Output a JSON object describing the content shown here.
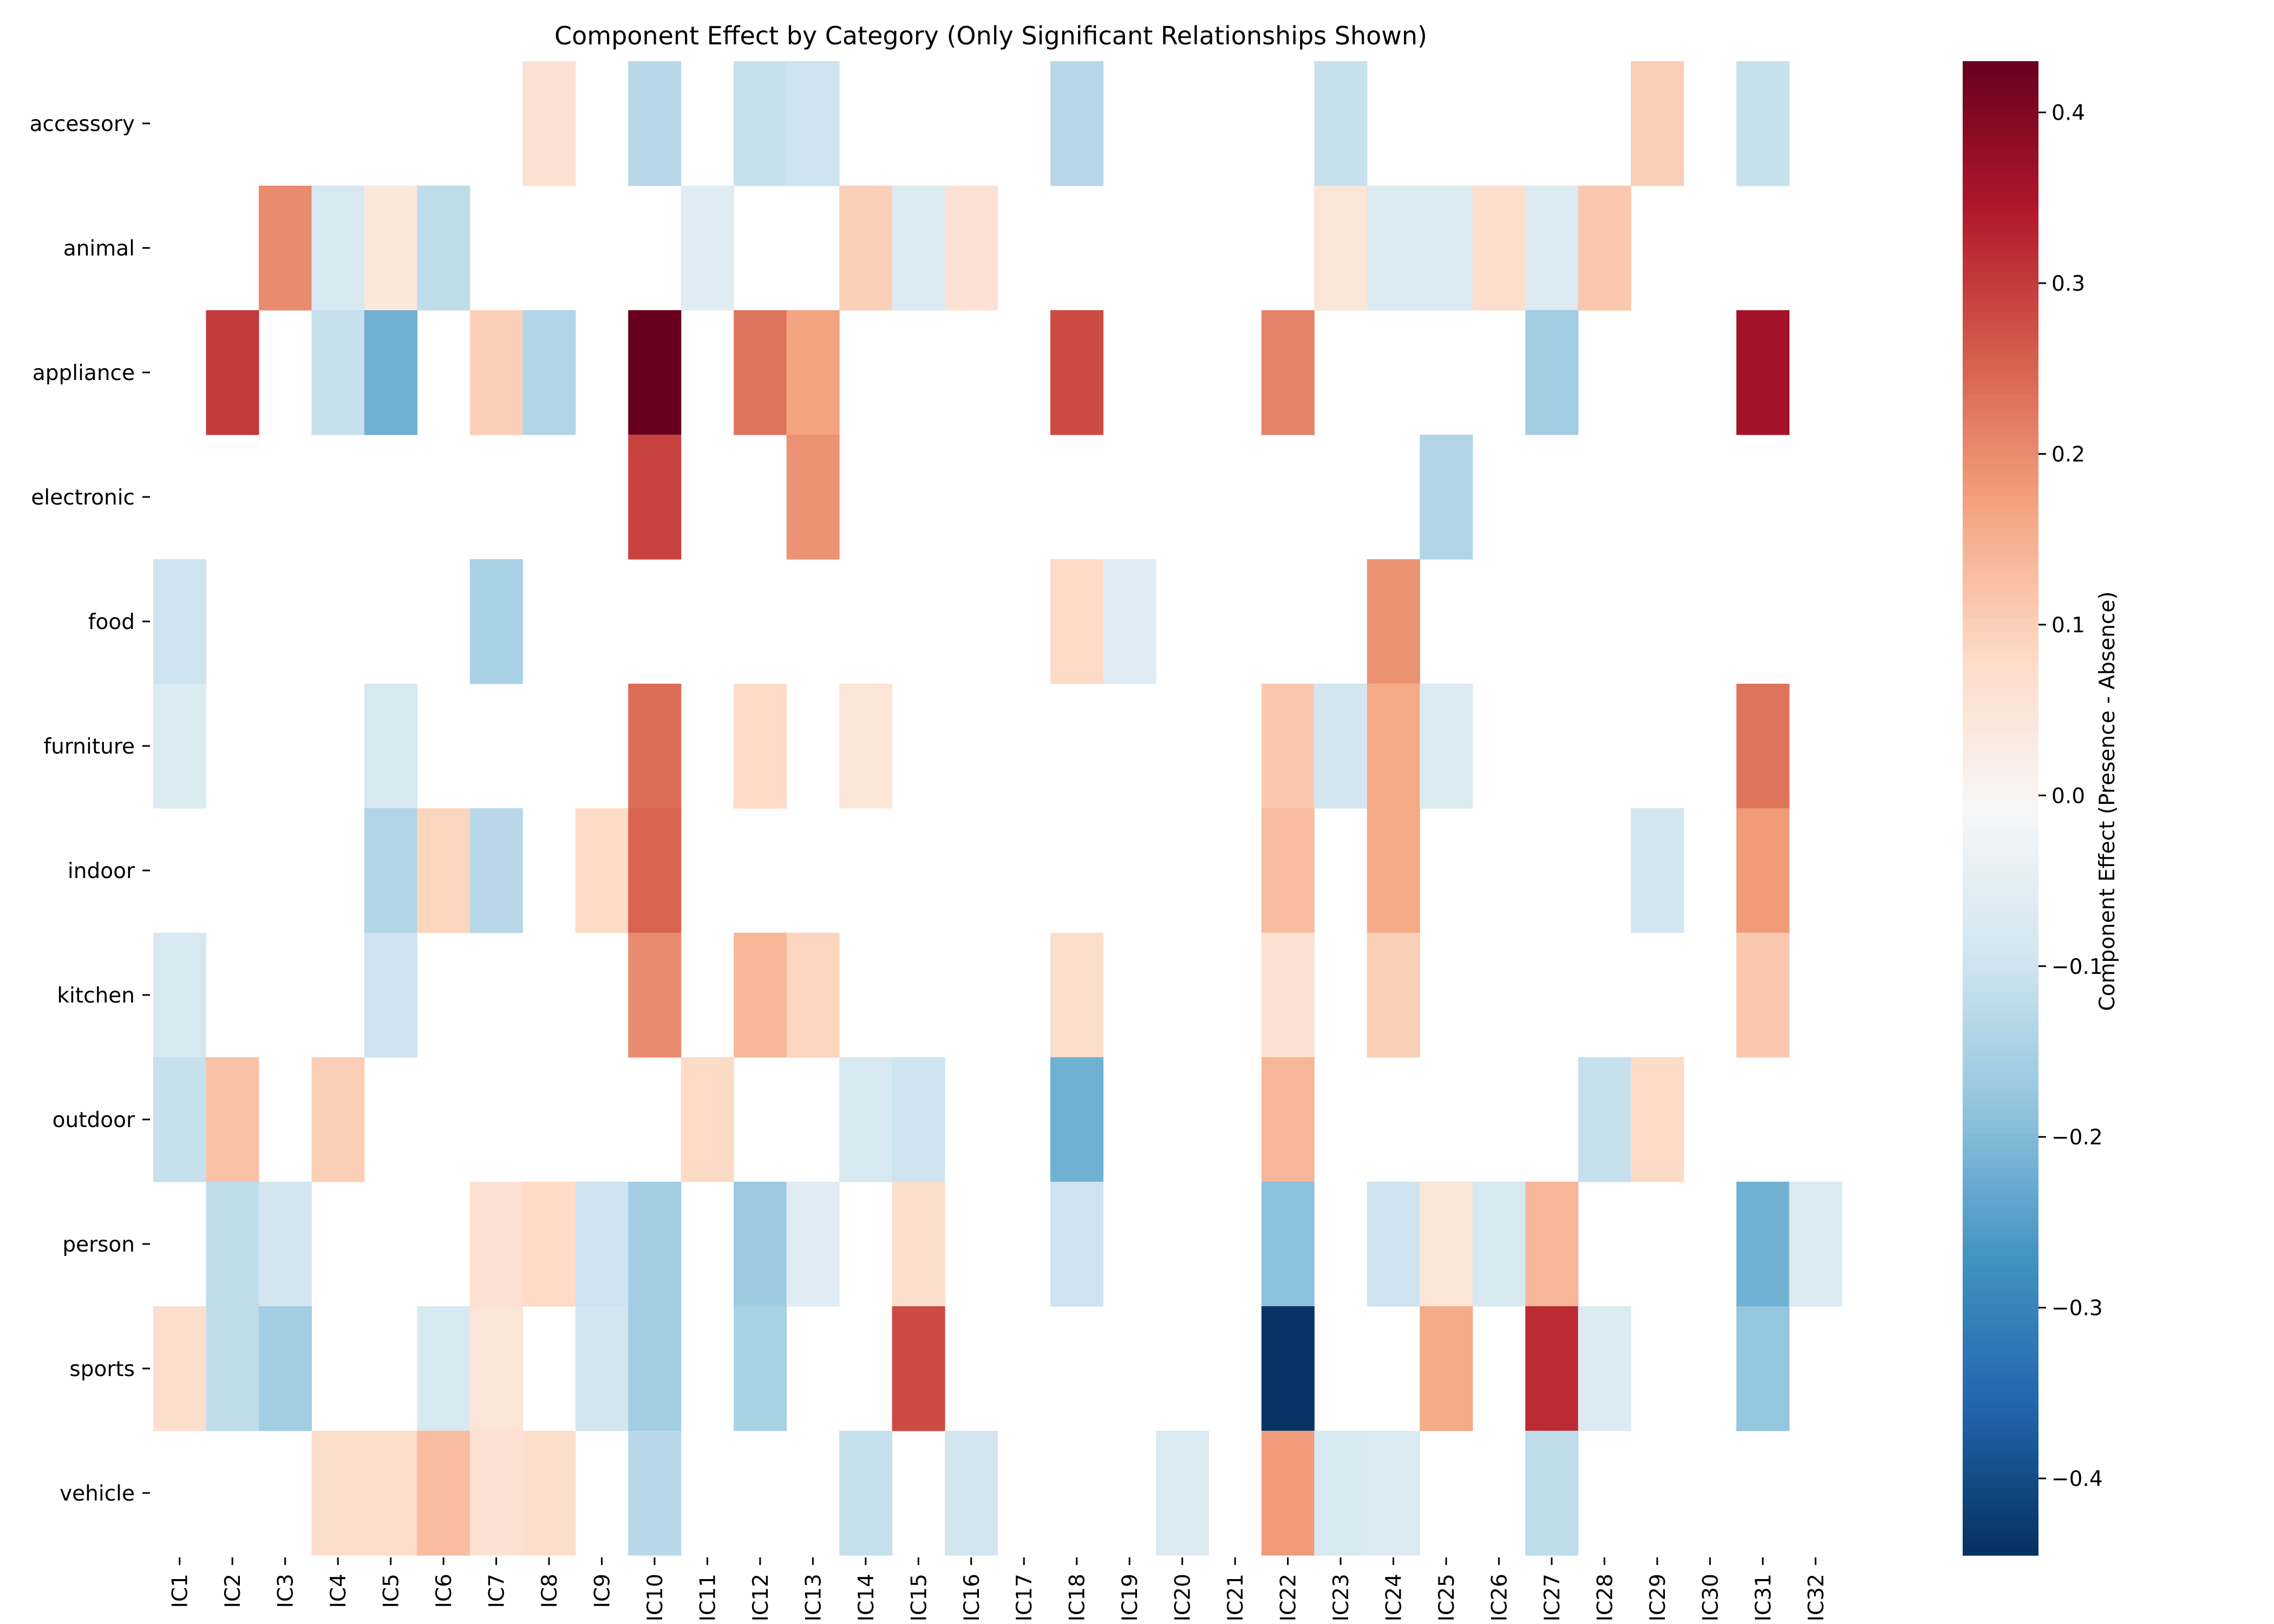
{
  "chart_data": {
    "type": "heatmap",
    "title": "Component Effect by Category (Only Significant Relationships Shown)",
    "xlabel": "",
    "ylabel": "",
    "x_categories": [
      "IC1",
      "IC2",
      "IC3",
      "IC4",
      "IC5",
      "IC6",
      "IC7",
      "IC8",
      "IC9",
      "IC10",
      "IC11",
      "IC12",
      "IC13",
      "IC14",
      "IC15",
      "IC16",
      "IC17",
      "IC18",
      "IC19",
      "IC20",
      "IC21",
      "IC22",
      "IC23",
      "IC24",
      "IC25",
      "IC26",
      "IC27",
      "IC28",
      "IC29",
      "IC30",
      "IC31",
      "IC32"
    ],
    "y_categories": [
      "accessory",
      "animal",
      "appliance",
      "electronic",
      "food",
      "furniture",
      "indoor",
      "kitchen",
      "outdoor",
      "person",
      "sports",
      "vehicle"
    ],
    "values": [
      [
        null,
        null,
        null,
        null,
        null,
        null,
        null,
        0.06,
        null,
        -0.13,
        null,
        -0.11,
        -0.1,
        null,
        null,
        null,
        null,
        -0.13,
        null,
        null,
        null,
        null,
        -0.11,
        null,
        null,
        null,
        null,
        null,
        0.1,
        null,
        -0.11,
        null
      ],
      [
        null,
        null,
        0.2,
        -0.08,
        0.04,
        -0.12,
        null,
        null,
        null,
        null,
        -0.06,
        null,
        null,
        0.1,
        -0.07,
        0.06,
        null,
        null,
        null,
        null,
        null,
        null,
        0.05,
        -0.07,
        -0.07,
        0.07,
        -0.07,
        0.11,
        null,
        null,
        null,
        null
      ],
      [
        null,
        0.3,
        null,
        -0.11,
        -0.22,
        null,
        0.1,
        -0.14,
        null,
        0.43,
        null,
        0.23,
        0.17,
        null,
        null,
        null,
        null,
        0.28,
        null,
        null,
        null,
        0.21,
        null,
        null,
        null,
        null,
        -0.16,
        null,
        null,
        null,
        0.36,
        null
      ],
      [
        null,
        null,
        null,
        null,
        null,
        null,
        null,
        null,
        null,
        0.29,
        null,
        null,
        0.19,
        null,
        null,
        null,
        null,
        null,
        null,
        null,
        null,
        null,
        null,
        null,
        -0.14,
        null,
        null,
        null,
        null,
        null,
        null,
        null
      ],
      [
        -0.1,
        null,
        null,
        null,
        null,
        null,
        -0.15,
        null,
        null,
        null,
        null,
        null,
        null,
        null,
        null,
        null,
        null,
        0.08,
        -0.06,
        null,
        null,
        null,
        null,
        0.19,
        null,
        null,
        null,
        null,
        null,
        null,
        null,
        null
      ],
      [
        -0.07,
        null,
        null,
        null,
        -0.08,
        null,
        null,
        null,
        null,
        0.24,
        null,
        0.08,
        null,
        0.05,
        null,
        null,
        null,
        null,
        null,
        null,
        null,
        0.11,
        -0.09,
        0.16,
        -0.07,
        null,
        null,
        null,
        null,
        null,
        0.23,
        null
      ],
      [
        null,
        null,
        null,
        null,
        -0.14,
        0.09,
        -0.13,
        null,
        0.08,
        0.25,
        null,
        null,
        null,
        null,
        null,
        null,
        null,
        null,
        null,
        null,
        null,
        0.13,
        null,
        0.16,
        null,
        null,
        null,
        null,
        -0.09,
        null,
        0.18,
        null
      ],
      [
        -0.08,
        null,
        null,
        null,
        -0.1,
        null,
        null,
        null,
        null,
        0.2,
        null,
        0.14,
        0.09,
        null,
        null,
        null,
        null,
        0.07,
        null,
        null,
        null,
        0.06,
        null,
        0.1,
        null,
        null,
        null,
        null,
        null,
        null,
        0.11,
        null
      ],
      [
        -0.11,
        0.12,
        null,
        0.1,
        null,
        null,
        null,
        null,
        null,
        null,
        0.08,
        null,
        null,
        -0.08,
        -0.1,
        null,
        null,
        -0.22,
        null,
        null,
        null,
        0.14,
        null,
        null,
        null,
        null,
        null,
        -0.11,
        0.08,
        null,
        null,
        null
      ],
      [
        null,
        -0.12,
        -0.09,
        null,
        null,
        null,
        0.06,
        0.08,
        -0.1,
        -0.16,
        null,
        -0.17,
        -0.06,
        null,
        0.07,
        null,
        null,
        -0.1,
        null,
        null,
        null,
        -0.19,
        null,
        -0.1,
        0.05,
        -0.08,
        0.14,
        null,
        null,
        null,
        -0.22,
        -0.07
      ],
      [
        0.07,
        -0.12,
        -0.16,
        null,
        null,
        -0.08,
        0.05,
        null,
        -0.09,
        -0.16,
        null,
        -0.15,
        null,
        null,
        0.28,
        null,
        null,
        null,
        null,
        null,
        null,
        -0.44,
        null,
        null,
        0.16,
        null,
        0.32,
        -0.07,
        null,
        null,
        -0.18,
        null
      ],
      [
        null,
        null,
        null,
        0.07,
        0.07,
        0.13,
        0.06,
        0.07,
        null,
        -0.13,
        null,
        null,
        null,
        -0.11,
        null,
        -0.09,
        null,
        null,
        null,
        -0.07,
        null,
        0.18,
        -0.08,
        -0.07,
        null,
        null,
        -0.12,
        null,
        null,
        null,
        null,
        null
      ]
    ],
    "colormap": "RdBu_r",
    "vmin": -0.445,
    "vmax": 0.43,
    "colorbar": {
      "label": "Component Effect (Presence - Absence)",
      "ticks": [
        -0.4,
        -0.3,
        -0.2,
        -0.1,
        0.0,
        0.1,
        0.2,
        0.3,
        0.4
      ],
      "tick_labels": [
        "−0.4",
        "−0.3",
        "−0.2",
        "−0.1",
        "0.0",
        "0.1",
        "0.2",
        "0.3",
        "0.4"
      ]
    }
  }
}
